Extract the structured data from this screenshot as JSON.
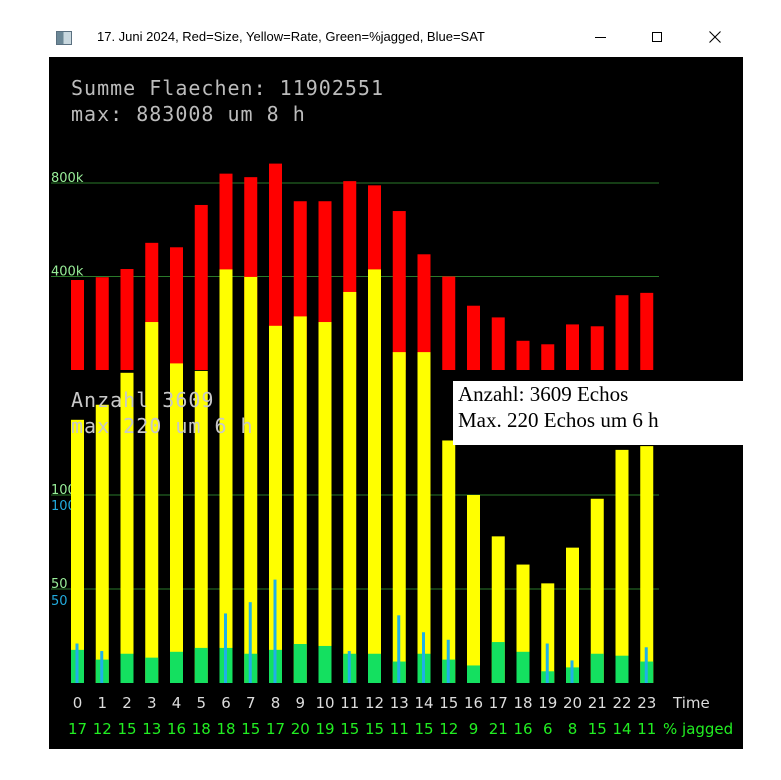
{
  "window": {
    "title": "17. Juni 2024, Red=Size, Yellow=Rate, Green=%jagged, Blue=SAT",
    "icon": "app-window-icon",
    "controls": [
      "minimize-icon",
      "maximize-icon",
      "close-icon"
    ]
  },
  "overlay": {
    "summe_text": "Summe Flaechen: 11902551",
    "summe_max_text": "max: 883008 um 8 h",
    "anzahl_text": "Anzahl 3609",
    "anzahl_max_text": "max  220 um 6 h",
    "info_line_1": "Anzahl: 3609 Echos",
    "info_line_2": "Max. 220 Echos um 6 h"
  },
  "colors": {
    "background": "#000000",
    "size": "#ff0000",
    "rate": "#ffff00",
    "jagged": "#14e060",
    "sat": "#1fb0e8",
    "gridline": "#2a7a2a",
    "grid_label_green": "#99ee99",
    "grid_label_blue": "#22aadd",
    "hour_label": "#dddddd",
    "jagged_label": "#22ee22"
  },
  "chart_data": {
    "type": "bar",
    "title": "17. Juni 2024, Red=Size, Yellow=Rate, Green=%jagged, Blue=SAT",
    "categories": [
      "0",
      "1",
      "2",
      "3",
      "4",
      "5",
      "6",
      "7",
      "8",
      "9",
      "10",
      "11",
      "12",
      "13",
      "14",
      "15",
      "16",
      "17",
      "18",
      "19",
      "20",
      "21",
      "22",
      "23"
    ],
    "x_label": "Time",
    "jagged_label": "% jagged",
    "size_axis": {
      "ticks": [
        400000,
        800000
      ],
      "tick_labels": [
        "400k",
        "800k"
      ]
    },
    "rate_axis": {
      "ticks": [
        50,
        100
      ],
      "tick_labels": [
        "50",
        "100"
      ]
    },
    "sat_axis": {
      "ticks": [
        50,
        100
      ],
      "tick_labels": [
        "50",
        "100"
      ]
    },
    "grid": true,
    "series": [
      {
        "name": "Size",
        "values": [
          385000,
          397000,
          432000,
          544000,
          525000,
          706000,
          840000,
          825000,
          883000,
          722000,
          722000,
          808000,
          790000,
          680000,
          495000,
          400000,
          275000,
          225000,
          125000,
          110000,
          195000,
          187000,
          320000,
          330000
        ]
      },
      {
        "name": "Rate",
        "values": [
          140,
          148,
          165,
          192,
          170,
          166,
          220,
          216,
          190,
          195,
          192,
          208,
          220,
          176,
          176,
          129,
          100,
          78,
          63,
          53,
          72,
          98,
          124,
          126
        ]
      },
      {
        "name": "%jagged",
        "values": [
          17,
          12,
          15,
          13,
          16,
          18,
          18,
          15,
          17,
          20,
          19,
          15,
          15,
          11,
          15,
          12,
          9,
          21,
          16,
          6,
          8,
          15,
          14,
          11
        ]
      },
      {
        "name": "SAT",
        "values": [
          21,
          17,
          0,
          0,
          0,
          0,
          37,
          43,
          55,
          0,
          0,
          17,
          0,
          36,
          27,
          23,
          0,
          0,
          0,
          21,
          12,
          0,
          0,
          19
        ]
      }
    ]
  }
}
